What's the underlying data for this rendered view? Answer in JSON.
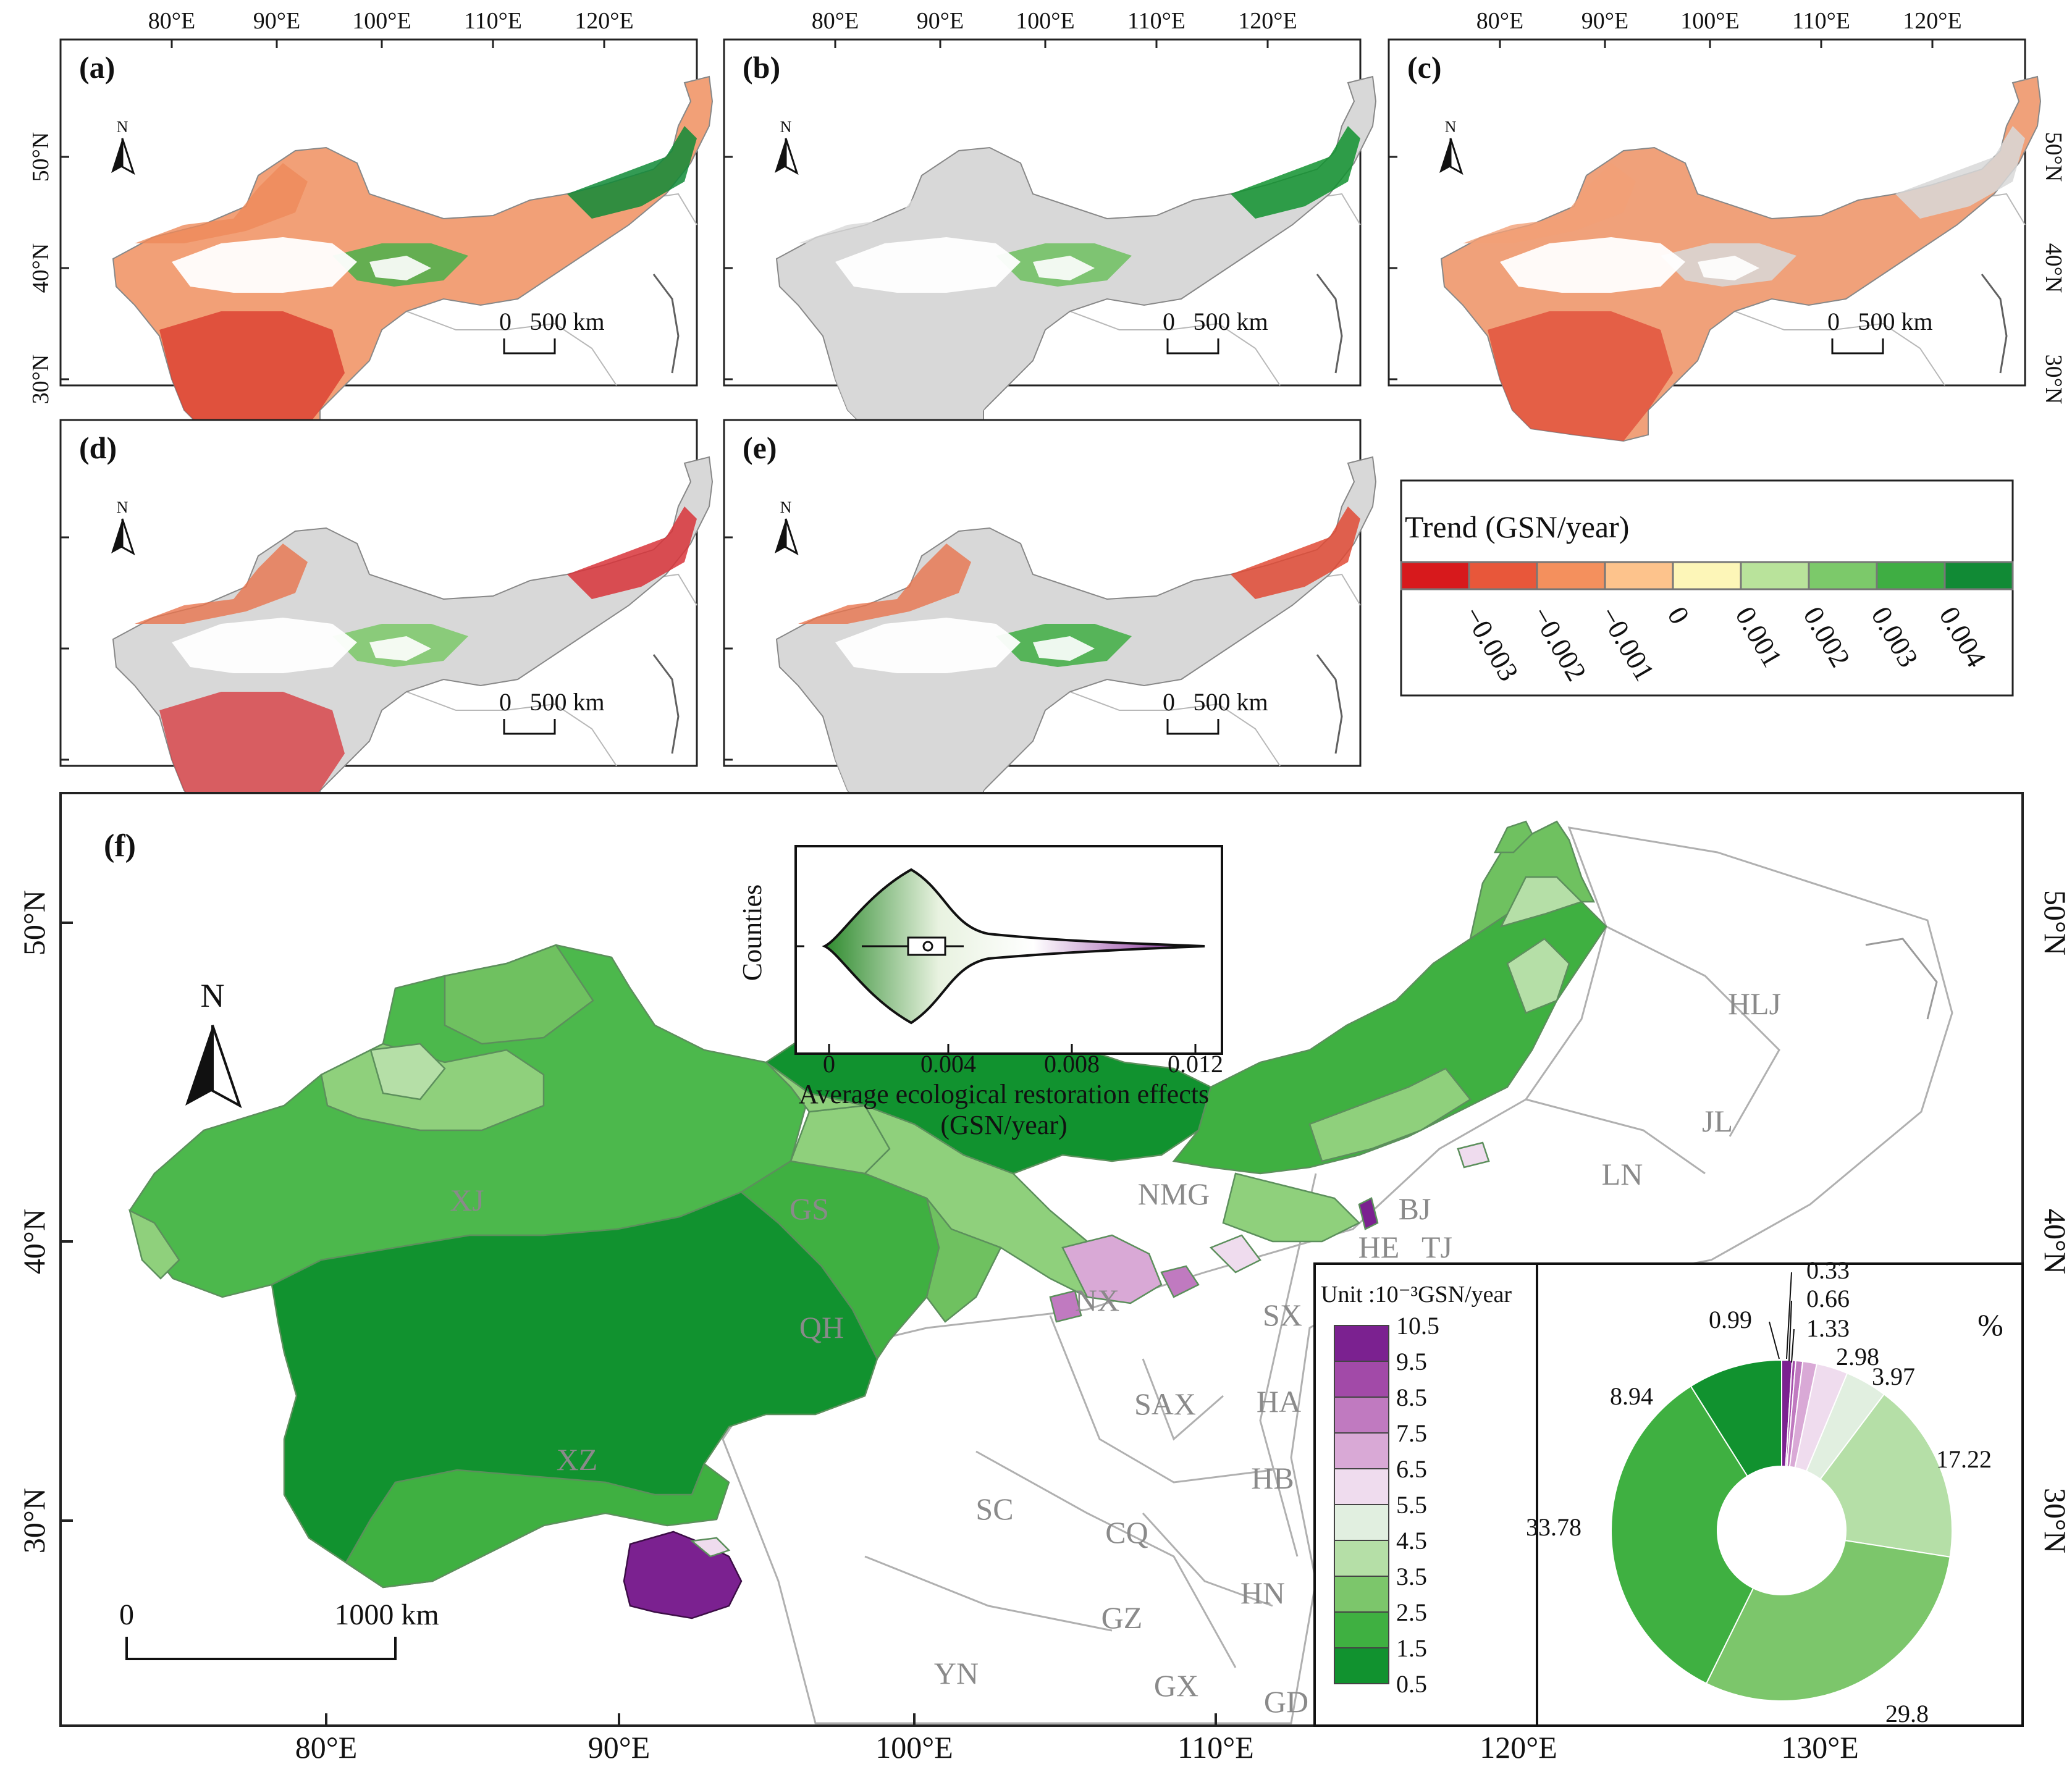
{
  "panels": [
    {
      "label": "(a)",
      "scale_zero": "0",
      "scale_text": "500 km",
      "north": "N"
    },
    {
      "label": "(b)",
      "scale_zero": "0",
      "scale_text": "500 km",
      "north": "N"
    },
    {
      "label": "(c)",
      "scale_zero": "0",
      "scale_text": "500 km",
      "north": "N"
    },
    {
      "label": "(d)",
      "scale_zero": "0",
      "scale_text": "500 km",
      "north": "N"
    },
    {
      "label": "(e)",
      "scale_zero": "0",
      "scale_text": "500 km",
      "north": "N"
    }
  ],
  "small_axes": {
    "lon_labels": [
      "80°E",
      "90°E",
      "100°E",
      "110°E",
      "120°E"
    ],
    "lat_labels": [
      "50°N",
      "40°N",
      "30°N"
    ]
  },
  "trend_legend": {
    "title": "Trend (GSN/year)",
    "colors": [
      "#d7191c",
      "#e8573a",
      "#f4905d",
      "#fdc38c",
      "#fdf6b8",
      "#b9e39b",
      "#7cc96a",
      "#3fae43",
      "#118a35"
    ],
    "ticks": [
      "−0.003",
      "−0.002",
      "−0.001",
      "0",
      "0.001",
      "0.002",
      "0.003",
      "0.004"
    ]
  },
  "main_map": {
    "label": "(f)",
    "north": "N",
    "scale_zero": "0",
    "scale_text": "1000 km",
    "lon_labels": [
      "80°E",
      "90°E",
      "100°E",
      "110°E",
      "120°E",
      "130°E"
    ],
    "lat_labels": [
      "50°N",
      "40°N",
      "30°N"
    ],
    "regions": [
      "XJ",
      "XZ",
      "QH",
      "GS",
      "NMG",
      "NX",
      "BJ",
      "HE",
      "TJ",
      "HLJ",
      "JL",
      "LN",
      "SX",
      "SAX",
      "HA",
      "HB",
      "SC",
      "CQ",
      "GZ",
      "HN",
      "YN",
      "GX",
      "GD"
    ]
  },
  "violin": {
    "ylabel": "Counties",
    "xlabel_line1": "Average ecological restoration effects",
    "xlabel_line2": "(GSN/year)",
    "xticks": [
      "0",
      "0.004",
      "0.008",
      "0.012"
    ]
  },
  "class_legend": {
    "title": "Unit :10⁻³GSN/year",
    "labels": [
      "10.5",
      "9.5",
      "8.5",
      "7.5",
      "6.5",
      "5.5",
      "4.5",
      "3.5",
      "2.5",
      "1.5",
      "0.5"
    ],
    "colors": [
      "#7b2190",
      "#a24aa8",
      "#c07ac0",
      "#d9a9d6",
      "#efdcee",
      "#e1efe0",
      "#b5dfa7",
      "#7cc66b",
      "#3fb041",
      "#11922f"
    ]
  },
  "chart_data": {
    "type": "pie",
    "title": "%",
    "values": [
      8.94,
      33.78,
      29.8,
      17.22,
      3.97,
      2.98,
      1.33,
      0.66,
      0.33,
      0.99
    ],
    "value_labels": [
      "8.94",
      "33.78",
      "29.8",
      "17.22",
      "3.97",
      "2.98",
      "1.33",
      "0.66",
      "0.33",
      "0.99"
    ],
    "classes": [
      "0.5–1.5",
      "1.5–2.5",
      "2.5–3.5",
      "3.5–4.5",
      "4.5–5.5",
      "5.5–6.5",
      "6.5–7.5",
      "7.5–8.5",
      "8.5–9.5",
      "9.5–10.5"
    ],
    "colors": [
      "#11922f",
      "#3fb041",
      "#7cc66b",
      "#b5dfa7",
      "#e1efe0",
      "#efdcee",
      "#d9a9d6",
      "#c07ac0",
      "#a24aa8",
      "#7b2190"
    ],
    "donut": true
  }
}
